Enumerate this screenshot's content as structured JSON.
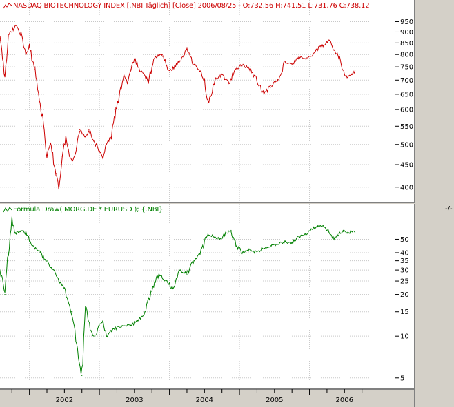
{
  "panes": {
    "top_title": "NASDAQ BIOTECHNOLOGY INDEX [.NBI  Täglich] [Close] 2006/08/25 - O:732.56 H:741.51 L:731.76 C:738.12",
    "bottom_title": "Formula Draw( MORG.DE * EURUSD ); {.NBI}",
    "corner_mark": "-/-"
  },
  "chart_data": [
    {
      "type": "line",
      "title": "NASDAQ BIOTECHNOLOGY INDEX [.NBI  Täglich] [Close] 2006/08/25 - O:732.56 H:741.51 L:731.76 C:738.12",
      "color": "#cc0000",
      "y_scale": "log",
      "ylim": [
        380,
        990
      ],
      "y_ticks": [
        400,
        450,
        500,
        550,
        600,
        650,
        700,
        750,
        800,
        850,
        900,
        950
      ],
      "x": [
        2001.58,
        2001.65,
        2001.7,
        2001.8,
        2001.88,
        2001.95,
        2002.0,
        2002.08,
        2002.13,
        2002.2,
        2002.25,
        2002.3,
        2002.38,
        2002.42,
        2002.47,
        2002.52,
        2002.57,
        2002.62,
        2002.67,
        2002.72,
        2002.8,
        2002.85,
        2002.92,
        2003.0,
        2003.05,
        2003.1,
        2003.17,
        2003.2,
        2003.28,
        2003.35,
        2003.4,
        2003.45,
        2003.5,
        2003.6,
        2003.7,
        2003.8,
        2003.9,
        2004.0,
        2004.1,
        2004.2,
        2004.25,
        2004.35,
        2004.42,
        2004.5,
        2004.55,
        2004.65,
        2004.75,
        2004.85,
        2004.95,
        2005.05,
        2005.15,
        2005.25,
        2005.35,
        2005.45,
        2005.55,
        2005.65,
        2005.75,
        2005.85,
        2005.95,
        2006.05,
        2006.13,
        2006.2,
        2006.28,
        2006.35,
        2006.42,
        2006.5,
        2006.55,
        2006.6,
        2006.65
      ],
      "values": [
        860,
        720,
        880,
        930,
        890,
        800,
        830,
        740,
        650,
        560,
        470,
        500,
        430,
        400,
        470,
        520,
        470,
        460,
        490,
        540,
        520,
        540,
        510,
        480,
        470,
        500,
        520,
        560,
        640,
        720,
        690,
        740,
        780,
        730,
        700,
        790,
        800,
        730,
        760,
        790,
        830,
        760,
        740,
        700,
        620,
        700,
        720,
        690,
        740,
        760,
        740,
        700,
        650,
        680,
        700,
        770,
        760,
        790,
        780,
        800,
        830,
        840,
        860,
        820,
        790,
        720,
        710,
        720,
        735
      ]
    },
    {
      "type": "line",
      "title": "Formula Draw( MORG.DE * EURUSD ); {.NBI}",
      "color": "#008000",
      "y_scale": "log",
      "ylim": [
        4.5,
        75
      ],
      "y_ticks": [
        5,
        10,
        15,
        20,
        25,
        30,
        35,
        40,
        50
      ],
      "x": [
        2001.58,
        2001.65,
        2001.7,
        2001.75,
        2001.8,
        2001.88,
        2001.95,
        2002.05,
        2002.15,
        2002.25,
        2002.35,
        2002.42,
        2002.5,
        2002.55,
        2002.6,
        2002.65,
        2002.7,
        2002.75,
        2002.8,
        2002.88,
        2002.92,
        2002.96,
        2003.0,
        2003.05,
        2003.1,
        2003.17,
        2003.25,
        2003.35,
        2003.45,
        2003.55,
        2003.65,
        2003.75,
        2003.85,
        2003.95,
        2004.05,
        2004.15,
        2004.25,
        2004.35,
        2004.45,
        2004.55,
        2004.65,
        2004.72,
        2004.8,
        2004.88,
        2004.95,
        2005.05,
        2005.15,
        2005.25,
        2005.35,
        2005.45,
        2005.55,
        2005.65,
        2005.75,
        2005.85,
        2005.95,
        2006.05,
        2006.12,
        2006.2,
        2006.28,
        2006.35,
        2006.42,
        2006.48,
        2006.55,
        2006.6,
        2006.65
      ],
      "values": [
        30,
        20,
        40,
        70,
        55,
        58,
        55,
        45,
        40,
        35,
        30,
        25,
        22,
        18,
        15,
        11,
        7,
        5.2,
        16,
        11,
        10,
        10.5,
        12,
        12.5,
        10,
        11,
        11.5,
        12,
        12,
        13,
        15,
        22,
        28,
        25,
        22,
        30,
        28,
        35,
        40,
        55,
        52,
        50,
        55,
        58,
        45,
        40,
        42,
        40,
        43,
        45,
        46,
        48,
        47,
        52,
        55,
        60,
        62,
        63,
        56,
        50,
        55,
        58,
        55,
        57,
        56
      ]
    }
  ],
  "x_axis": {
    "xlim": [
      2001.58,
      2006.98
    ],
    "labels": [
      "2002",
      "2003",
      "2004",
      "2005",
      "2006"
    ],
    "label_positions": [
      2002.0,
      2003.0,
      2004.0,
      2005.0,
      2006.0
    ]
  }
}
